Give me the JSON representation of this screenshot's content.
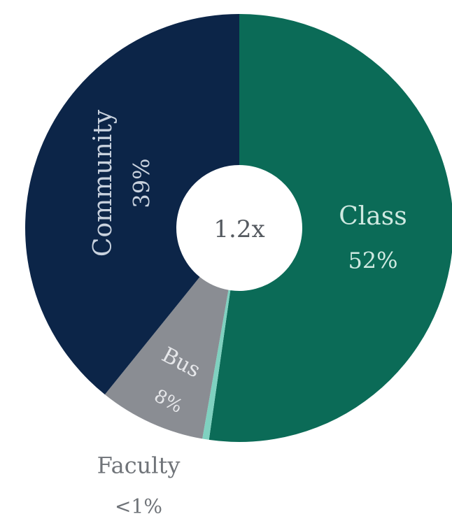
{
  "chart_data": {
    "type": "donut",
    "center_label": "1.2x",
    "categories": [
      "Class",
      "Faculty",
      "Bus",
      "Community"
    ],
    "values": [
      52,
      0.5,
      8,
      39
    ],
    "value_labels": [
      "52%",
      "<1%",
      "8%",
      "39%"
    ],
    "colors": [
      "#0b6b57",
      "#7fd1c0",
      "#8a8d93",
      "#0c2548"
    ]
  }
}
